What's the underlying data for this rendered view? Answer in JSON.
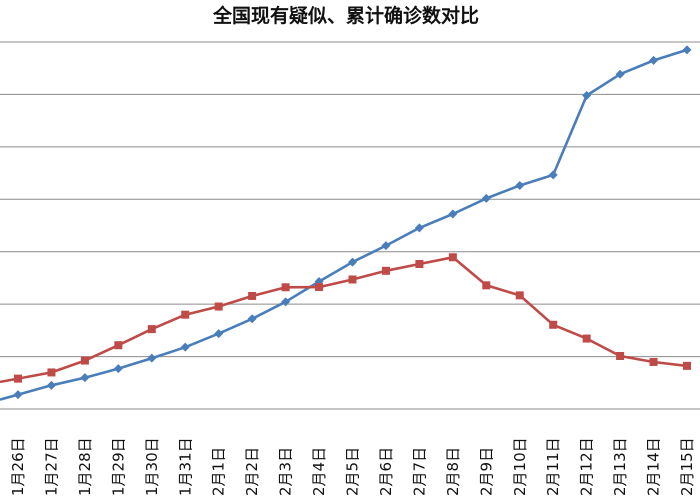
{
  "chart_data": {
    "type": "line",
    "title": "全国现有疑似、累计确诊数对比",
    "categories": [
      "1月26日",
      "1月27日",
      "1月28日",
      "1月29日",
      "1月30日",
      "1月31日",
      "2月1日",
      "2月2日",
      "2月3日",
      "2月4日",
      "2月5日",
      "2月6日",
      "2月7日",
      "2月8日",
      "2月9日",
      "2月10日",
      "2月11日",
      "2月12日",
      "2月13日",
      "2月14日",
      "2月15日"
    ],
    "series": [
      {
        "color": "#4a7ebb",
        "marker": "diamond",
        "values": [
          2744,
          4515,
          5974,
          7711,
          9692,
          11791,
          14380,
          17205,
          20438,
          24324,
          28018,
          31161,
          34546,
          37198,
          40171,
          42638,
          44653,
          59804,
          63851,
          66492,
          68500
        ]
      },
      {
        "color": "#be4b48",
        "marker": "square",
        "values": [
          5794,
          6973,
          9239,
          12167,
          15238,
          17988,
          19544,
          21558,
          23214,
          23260,
          24702,
          26359,
          27657,
          28942,
          23589,
          21675,
          16067,
          13435,
          10109,
          8969,
          8228
        ]
      }
    ],
    "ylim": [
      0,
      70000
    ],
    "y_grid_step": 10000,
    "grid": "horizontal",
    "legend": "none"
  }
}
